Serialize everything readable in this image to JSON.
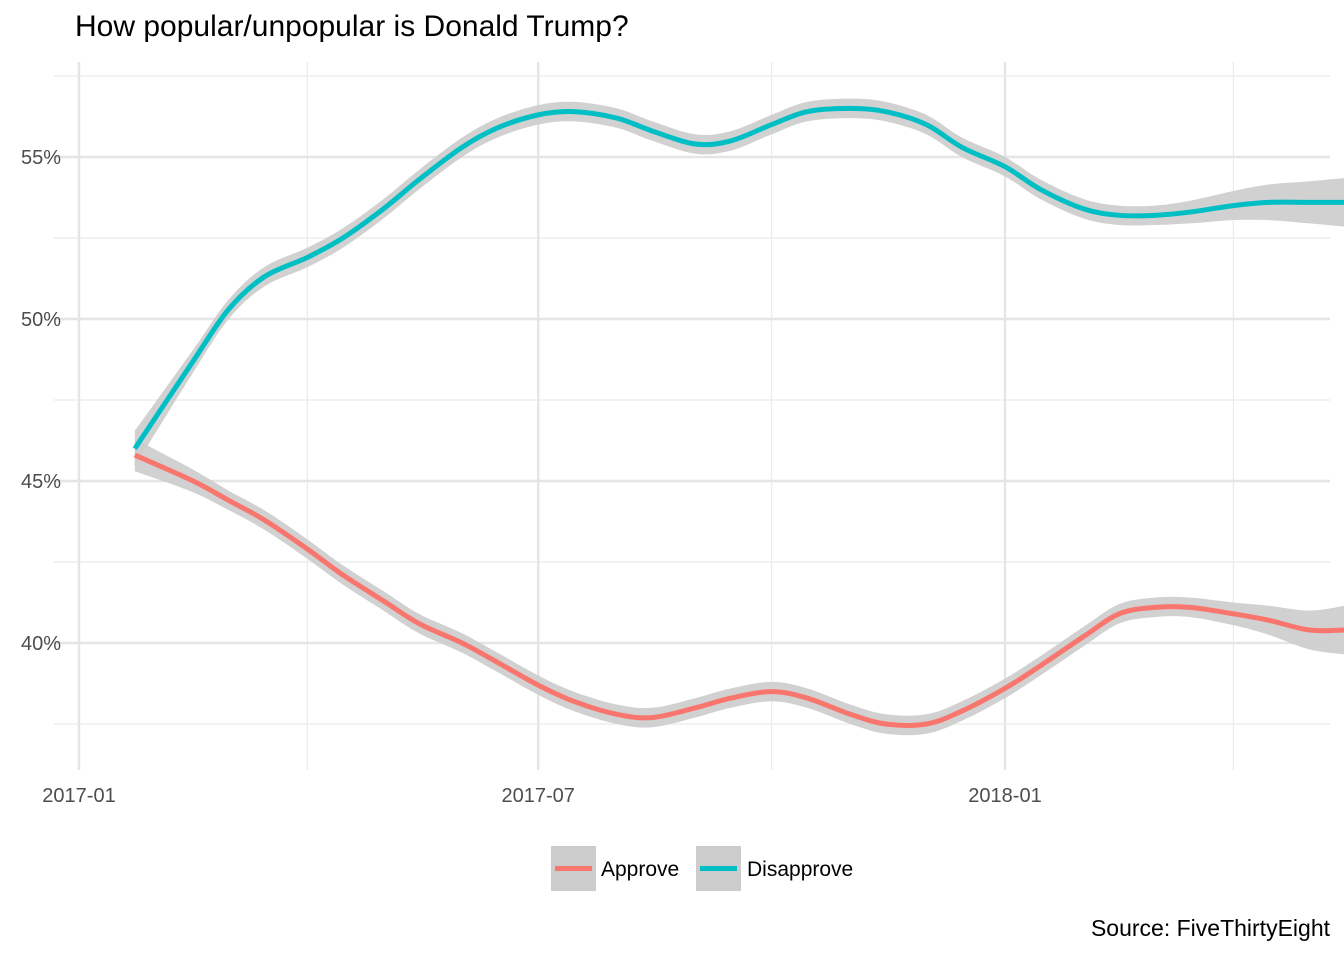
{
  "chart_data": {
    "type": "line",
    "title": "How popular/unpopular is Donald Trump?",
    "caption": "Source: FiveThirtyEight",
    "xlabel": "",
    "ylabel": "",
    "x_ticks": [
      "2017-01",
      "2017-07",
      "2018-01"
    ],
    "y_ticks": [
      "40%",
      "45%",
      "50%",
      "55%"
    ],
    "xlim": [
      "2017-01-01",
      "2018-05-27"
    ],
    "ylim": [
      36.2,
      58.2
    ],
    "grid": true,
    "legend_position": "bottom",
    "x": [
      "2017-01-23",
      "2017-02-15",
      "2017-03-01",
      "2017-03-15",
      "2017-04-01",
      "2017-04-15",
      "2017-05-01",
      "2017-05-15",
      "2017-06-01",
      "2017-06-15",
      "2017-07-01",
      "2017-07-15",
      "2017-08-01",
      "2017-08-15",
      "2017-09-01",
      "2017-09-15",
      "2017-10-01",
      "2017-10-15",
      "2017-11-01",
      "2017-11-15",
      "2017-12-01",
      "2017-12-15",
      "2018-01-01",
      "2018-01-15",
      "2018-02-01",
      "2018-02-15",
      "2018-03-01",
      "2018-03-15",
      "2018-04-01",
      "2018-04-15",
      "2018-05-01",
      "2018-05-15"
    ],
    "series": [
      {
        "name": "Approve",
        "color": "#F8766D",
        "values": [
          45.8,
          45.0,
          44.4,
          43.8,
          42.9,
          42.1,
          41.3,
          40.6,
          40.0,
          39.4,
          38.7,
          38.2,
          37.8,
          37.7,
          38.0,
          38.3,
          38.5,
          38.3,
          37.8,
          37.5,
          37.5,
          37.9,
          38.6,
          39.3,
          40.2,
          40.9,
          41.1,
          41.1,
          40.9,
          40.7,
          40.4,
          40.4
        ],
        "ci_halfwidth": [
          0.5,
          0.35,
          0.3,
          0.3,
          0.3,
          0.3,
          0.3,
          0.3,
          0.3,
          0.3,
          0.3,
          0.3,
          0.3,
          0.3,
          0.3,
          0.3,
          0.3,
          0.3,
          0.3,
          0.3,
          0.3,
          0.3,
          0.3,
          0.3,
          0.3,
          0.3,
          0.3,
          0.3,
          0.35,
          0.45,
          0.6,
          0.75
        ]
      },
      {
        "name": "Disapprove",
        "color": "#00BFC4",
        "values": [
          46.0,
          48.7,
          50.3,
          51.3,
          51.9,
          52.5,
          53.4,
          54.3,
          55.3,
          55.9,
          56.3,
          56.4,
          56.2,
          55.8,
          55.4,
          55.5,
          56.0,
          56.4,
          56.5,
          56.4,
          56.0,
          55.3,
          54.7,
          54.0,
          53.4,
          53.2,
          53.2,
          53.3,
          53.5,
          53.6,
          53.6,
          53.6
        ],
        "ci_halfwidth": [
          0.55,
          0.35,
          0.3,
          0.3,
          0.3,
          0.3,
          0.3,
          0.3,
          0.3,
          0.3,
          0.3,
          0.3,
          0.3,
          0.3,
          0.3,
          0.3,
          0.3,
          0.3,
          0.3,
          0.3,
          0.3,
          0.3,
          0.3,
          0.3,
          0.3,
          0.3,
          0.3,
          0.35,
          0.45,
          0.55,
          0.65,
          0.75
        ]
      }
    ],
    "band_color": "#cccccc"
  }
}
